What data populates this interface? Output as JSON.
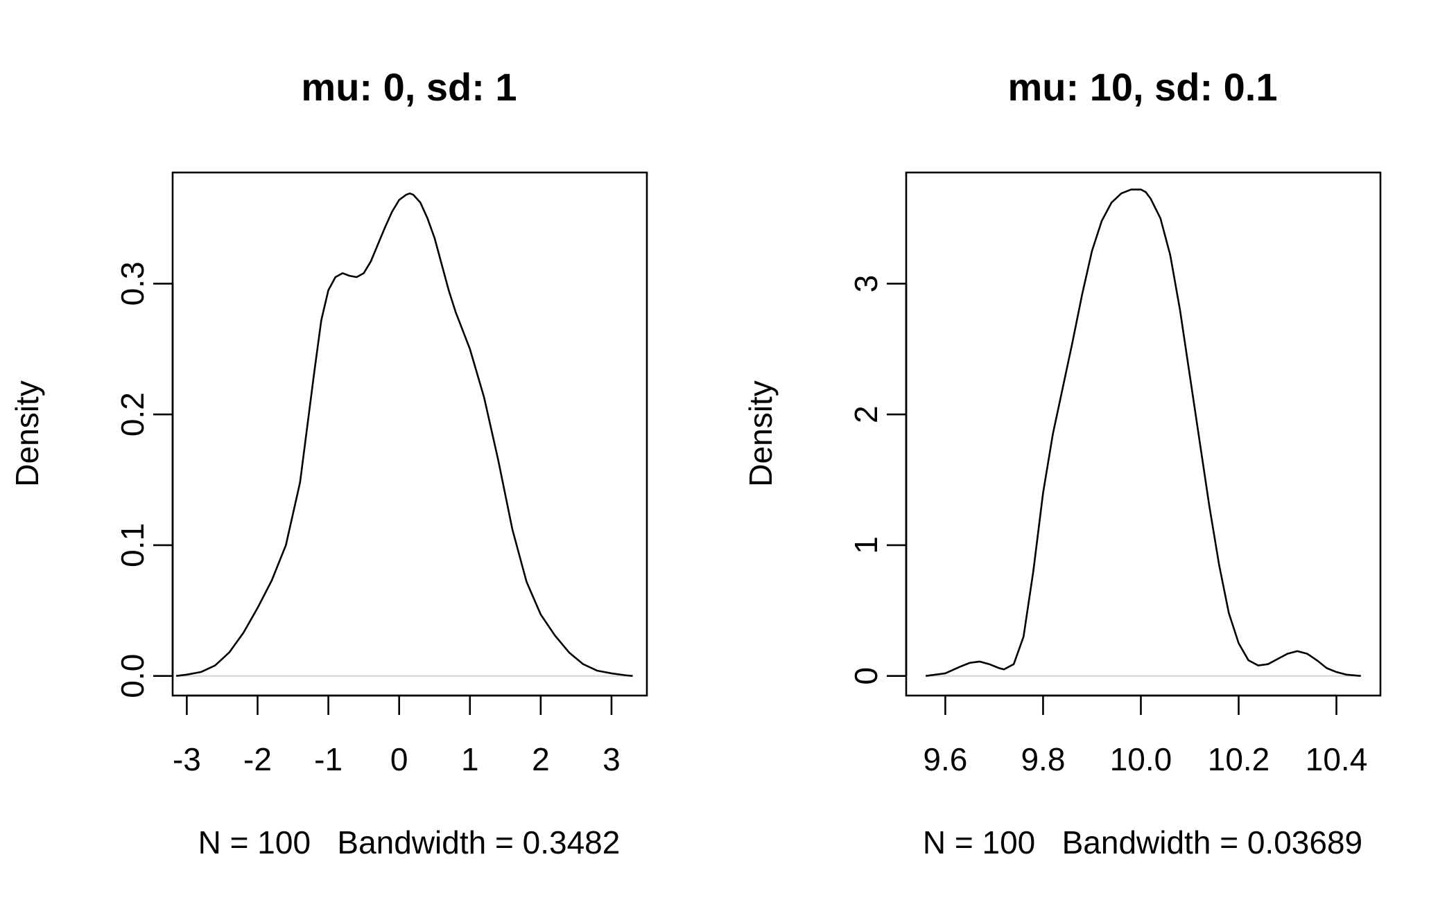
{
  "chart_data": [
    {
      "type": "line",
      "title": "mu: 0, sd: 1",
      "xlabel": "N = 100   Bandwidth = 0.3482",
      "ylabel": "Density",
      "xlim": [
        -3.2,
        3.5
      ],
      "ylim": [
        -0.015,
        0.385
      ],
      "xticks": [
        -3,
        -2,
        -1,
        0,
        1,
        2,
        3
      ],
      "xtick_labels": [
        "-3",
        "-2",
        "-1",
        "0",
        "1",
        "2",
        "3"
      ],
      "yticks": [
        0.0,
        0.1,
        0.2,
        0.3
      ],
      "ytick_labels": [
        "0.0",
        "0.1",
        "0.2",
        "0.3"
      ],
      "grid": false,
      "baseline": 0,
      "series": [
        {
          "x": [
            -3.15,
            -3.0,
            -2.8,
            -2.6,
            -2.4,
            -2.2,
            -2.0,
            -1.8,
            -1.6,
            -1.4,
            -1.2,
            -1.1,
            -1.0,
            -0.9,
            -0.8,
            -0.7,
            -0.6,
            -0.5,
            -0.4,
            -0.3,
            -0.2,
            -0.1,
            0.0,
            0.1,
            0.15,
            0.2,
            0.3,
            0.4,
            0.5,
            0.6,
            0.7,
            0.8,
            1.0,
            1.2,
            1.4,
            1.6,
            1.8,
            2.0,
            2.2,
            2.4,
            2.6,
            2.8,
            3.0,
            3.2,
            3.3
          ],
          "y": [
            0.0,
            0.001,
            0.003,
            0.008,
            0.018,
            0.033,
            0.052,
            0.073,
            0.1,
            0.148,
            0.232,
            0.272,
            0.295,
            0.305,
            0.308,
            0.306,
            0.305,
            0.308,
            0.317,
            0.33,
            0.343,
            0.355,
            0.364,
            0.368,
            0.369,
            0.368,
            0.362,
            0.35,
            0.335,
            0.315,
            0.295,
            0.278,
            0.25,
            0.213,
            0.165,
            0.112,
            0.072,
            0.047,
            0.031,
            0.018,
            0.009,
            0.004,
            0.002,
            0.0005,
            0.0
          ]
        }
      ]
    },
    {
      "type": "line",
      "title": "mu: 10, sd: 0.1",
      "xlabel": "N = 100   Bandwidth = 0.03689",
      "ylabel": "Density",
      "xlim": [
        9.52,
        10.49
      ],
      "ylim": [
        -0.15,
        3.85
      ],
      "xticks": [
        9.6,
        9.8,
        10.0,
        10.2,
        10.4
      ],
      "xtick_labels": [
        "9.6",
        "9.8",
        "10.0",
        "10.2",
        "10.4"
      ],
      "yticks": [
        0,
        1,
        2,
        3
      ],
      "ytick_labels": [
        "0",
        "1",
        "2",
        "3"
      ],
      "grid": false,
      "baseline": 0,
      "series": [
        {
          "x": [
            9.56,
            9.6,
            9.63,
            9.65,
            9.67,
            9.69,
            9.71,
            9.72,
            9.74,
            9.76,
            9.78,
            9.8,
            9.82,
            9.84,
            9.86,
            9.88,
            9.9,
            9.92,
            9.94,
            9.96,
            9.98,
            10.0,
            10.01,
            10.02,
            10.04,
            10.06,
            10.08,
            10.1,
            10.12,
            10.14,
            10.16,
            10.18,
            10.2,
            10.22,
            10.24,
            10.26,
            10.28,
            10.3,
            10.32,
            10.34,
            10.36,
            10.38,
            10.4,
            10.42,
            10.45
          ],
          "y": [
            0.0,
            0.02,
            0.07,
            0.1,
            0.11,
            0.09,
            0.06,
            0.05,
            0.09,
            0.3,
            0.8,
            1.4,
            1.85,
            2.2,
            2.55,
            2.92,
            3.25,
            3.48,
            3.62,
            3.69,
            3.72,
            3.72,
            3.7,
            3.65,
            3.5,
            3.22,
            2.8,
            2.3,
            1.8,
            1.3,
            0.85,
            0.48,
            0.25,
            0.12,
            0.08,
            0.09,
            0.13,
            0.17,
            0.19,
            0.17,
            0.12,
            0.06,
            0.03,
            0.01,
            0.0
          ]
        }
      ]
    }
  ]
}
